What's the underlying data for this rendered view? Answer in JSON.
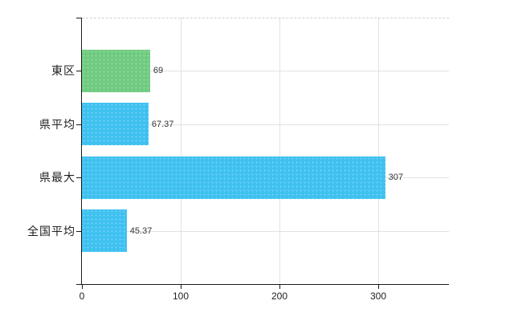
{
  "chart_data": {
    "type": "bar",
    "orientation": "horizontal",
    "title": "",
    "xlabel": "",
    "ylabel": "",
    "categories": [
      "東区",
      "県平均",
      "県最大",
      "全国平均"
    ],
    "values": [
      69,
      67.37,
      307,
      45.37
    ],
    "value_labels": [
      "69",
      "67.37",
      "307",
      "45.37"
    ],
    "bar_colors": [
      "#6fcb80",
      "#3fc1f0",
      "#3fc1f0",
      "#3fc1f0"
    ],
    "x_ticks": [
      0,
      100,
      200,
      300
    ],
    "x_tick_labels": [
      "0",
      "100",
      "200",
      "300"
    ],
    "xlim": [
      0,
      371
    ],
    "grid": true,
    "legend": "none",
    "colors": {
      "bar_green": "#6fcb80",
      "bar_blue": "#3fc1f0",
      "axis": "#1a1a1a",
      "gridline_h": "#dde4dd",
      "gridline_v": "#e2e2e2",
      "top_border": "#cfcfcf",
      "background": "#ffffff",
      "value_text": "#333333",
      "label_text": "#1f1f1f"
    }
  }
}
